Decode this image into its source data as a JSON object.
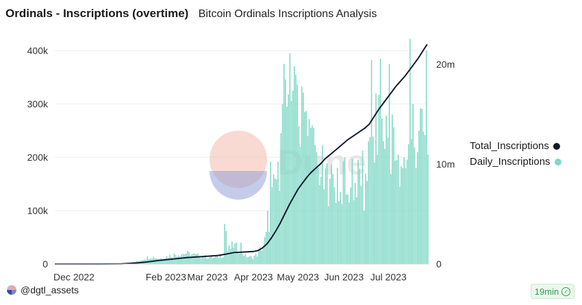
{
  "header": {
    "title": "Ordinals - Inscriptions (overtime)",
    "subtitle": "Bitcoin Ordinals Inscriptions Analysis"
  },
  "footer": {
    "user": "@dgtl_assets",
    "refresh": "19min",
    "user_icon": "avatar-icon",
    "refresh_icon": "check-circle-icon"
  },
  "watermark": {
    "text": "Dune"
  },
  "colors": {
    "bars": "#7fd8c6",
    "line": "#0f1a2e",
    "grid": "#eeeeee"
  },
  "chart_data": {
    "type": "bar+line",
    "x_axis": {
      "start_date": "2022-12-01",
      "end_date": "2023-07-31",
      "ticks": [
        {
          "label": "Dec 2022",
          "day": 0
        },
        {
          "label": "Feb 2023",
          "day": 62
        },
        {
          "label": "Mar 2023",
          "day": 90
        },
        {
          "label": "Apr 2023",
          "day": 121
        },
        {
          "label": "May 2023",
          "day": 151
        },
        {
          "label": "Jun 2023",
          "day": 182
        },
        {
          "label": "Jul 2023",
          "day": 212
        }
      ]
    },
    "y_left": {
      "min": 0,
      "max": 400000,
      "ticks": [
        0,
        100000,
        200000,
        300000,
        400000
      ],
      "tick_labels": [
        "0",
        "100k",
        "200k",
        "300k",
        "400k"
      ]
    },
    "y_right": {
      "min": 0,
      "max": 20000000,
      "ticks": [
        0,
        10000000,
        20000000
      ],
      "tick_labels": [
        "0",
        "10m",
        "20m"
      ]
    },
    "series": [
      {
        "name": "Daily_Inscriptions",
        "kind": "bar",
        "axis": "left",
        "keyframes": [
          [
            0,
            0
          ],
          [
            25,
            0
          ],
          [
            40,
            300
          ],
          [
            50,
            2000
          ],
          [
            56,
            5000
          ],
          [
            60,
            10000
          ],
          [
            64,
            14000
          ],
          [
            70,
            10000
          ],
          [
            76,
            15000
          ],
          [
            82,
            18000
          ],
          [
            88,
            20000
          ],
          [
            95,
            16000
          ],
          [
            100,
            14000
          ],
          [
            107,
            12000
          ],
          [
            112,
            15000
          ],
          [
            116,
            25000
          ],
          [
            120,
            35000
          ],
          [
            124,
            28000
          ],
          [
            128,
            15000
          ],
          [
            132,
            12000
          ],
          [
            136,
            18000
          ],
          [
            140,
            35000
          ],
          [
            143,
            60000
          ],
          [
            146,
            120000
          ],
          [
            149,
            160000
          ],
          [
            152,
            210000
          ],
          [
            155,
            280000
          ],
          [
            158,
            330000
          ],
          [
            161,
            360000
          ],
          [
            164,
            320000
          ],
          [
            167,
            280000
          ],
          [
            170,
            250000
          ],
          [
            173,
            220000
          ],
          [
            176,
            200000
          ],
          [
            179,
            180000
          ],
          [
            182,
            160000
          ],
          [
            186,
            150000
          ],
          [
            190,
            145000
          ],
          [
            194,
            150000
          ],
          [
            198,
            145000
          ],
          [
            202,
            150000
          ],
          [
            206,
            170000
          ],
          [
            210,
            180000
          ],
          [
            212,
            200000
          ],
          [
            215,
            240000
          ],
          [
            218,
            260000
          ],
          [
            221,
            250000
          ],
          [
            224,
            240000
          ],
          [
            227,
            220000
          ],
          [
            230,
            200000
          ],
          [
            233,
            195000
          ],
          [
            236,
            205000
          ],
          [
            239,
            210000
          ],
          [
            242,
            220000
          ],
          [
            243,
            230000
          ]
        ],
        "spikes": [
          [
            114,
            75000
          ],
          [
            115,
            62000
          ],
          [
            125,
            40000
          ],
          [
            143,
            100000
          ],
          [
            145,
            192000
          ],
          [
            148,
            160000
          ],
          [
            150,
            192000
          ],
          [
            152,
            245000
          ],
          [
            153,
            300000
          ],
          [
            154,
            375000
          ],
          [
            156,
            295000
          ],
          [
            158,
            395000
          ],
          [
            160,
            325000
          ],
          [
            162,
            355000
          ],
          [
            165,
            220000
          ],
          [
            168,
            285000
          ],
          [
            170,
            240000
          ],
          [
            172,
            255000
          ],
          [
            174,
            255000
          ],
          [
            176,
            210000
          ],
          [
            178,
            148000
          ],
          [
            181,
            140000
          ],
          [
            185,
            160000
          ],
          [
            190,
            180000
          ],
          [
            192,
            135000
          ],
          [
            195,
            200000
          ],
          [
            197,
            130000
          ],
          [
            200,
            197000
          ],
          [
            203,
            125000
          ],
          [
            208,
            100000
          ],
          [
            211,
            230000
          ],
          [
            213,
            382000
          ],
          [
            215,
            190000
          ],
          [
            217,
            205000
          ],
          [
            219,
            385000
          ],
          [
            221,
            230000
          ],
          [
            225,
            375000
          ],
          [
            227,
            280000
          ],
          [
            230,
            195000
          ],
          [
            232,
            145000
          ],
          [
            235,
            200000
          ],
          [
            236,
            180000
          ],
          [
            239,
            422000
          ],
          [
            241,
            300000
          ],
          [
            243,
            180000
          ],
          [
            245,
            250000
          ],
          [
            246,
            292000
          ],
          [
            248,
            248000
          ],
          [
            250,
            400000
          ]
        ]
      },
      {
        "name": "Total_Inscriptions",
        "kind": "line",
        "axis": "right",
        "points": [
          [
            0,
            0
          ],
          [
            30,
            0
          ],
          [
            45,
            20000
          ],
          [
            55,
            100000
          ],
          [
            62,
            200000
          ],
          [
            70,
            350000
          ],
          [
            80,
            500000
          ],
          [
            90,
            650000
          ],
          [
            100,
            750000
          ],
          [
            110,
            850000
          ],
          [
            116,
            1000000
          ],
          [
            121,
            1150000
          ],
          [
            128,
            1200000
          ],
          [
            134,
            1250000
          ],
          [
            137,
            1350000
          ],
          [
            140,
            1600000
          ],
          [
            143,
            2000000
          ],
          [
            146,
            2600000
          ],
          [
            149,
            3300000
          ],
          [
            152,
            4100000
          ],
          [
            155,
            5000000
          ],
          [
            158,
            5900000
          ],
          [
            161,
            6700000
          ],
          [
            164,
            7500000
          ],
          [
            167,
            8100000
          ],
          [
            170,
            8700000
          ],
          [
            173,
            9200000
          ],
          [
            176,
            9600000
          ],
          [
            179,
            10000000
          ],
          [
            182,
            10500000
          ],
          [
            186,
            11000000
          ],
          [
            190,
            11500000
          ],
          [
            194,
            12000000
          ],
          [
            198,
            12500000
          ],
          [
            202,
            12900000
          ],
          [
            206,
            13300000
          ],
          [
            209,
            13600000
          ],
          [
            212,
            14000000
          ],
          [
            215,
            14700000
          ],
          [
            218,
            15400000
          ],
          [
            221,
            16000000
          ],
          [
            224,
            16600000
          ],
          [
            227,
            17200000
          ],
          [
            230,
            17800000
          ],
          [
            233,
            18300000
          ],
          [
            236,
            18800000
          ],
          [
            239,
            19400000
          ],
          [
            242,
            20000000
          ],
          [
            245,
            20600000
          ],
          [
            248,
            21300000
          ],
          [
            251,
            22000000
          ]
        ]
      }
    ],
    "legend": [
      {
        "label": "Total_Inscriptions",
        "color": "#0f1a2e"
      },
      {
        "label": "Daily_Inscriptions",
        "color": "#7fd8c6"
      }
    ],
    "legend_position": "right"
  }
}
